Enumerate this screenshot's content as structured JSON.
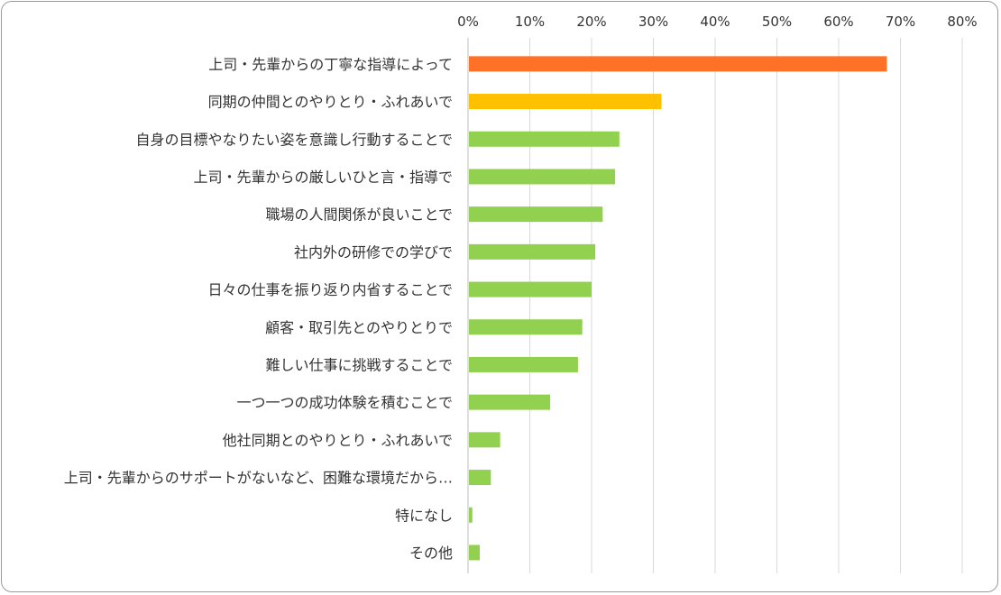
{
  "chart_data": {
    "type": "bar",
    "orientation": "horizontal",
    "x_ticks": [
      "0%",
      "10%",
      "20%",
      "30%",
      "40%",
      "50%",
      "60%",
      "70%",
      "80%"
    ],
    "xlim": [
      0,
      80
    ],
    "grid": true,
    "categories": [
      "上司・先輩からの丁寧な指導によって",
      "同期の仲間とのやりとり・ふれあいで",
      "自身の目標やなりたい姿を意識し行動することで",
      "上司・先輩からの厳しいひと言・指導で",
      "職場の人間関係が良いことで",
      "社内外の研修での学びで",
      "日々の仕事を振り返り内省することで",
      "顧客・取引先とのやりとりで",
      "難しい仕事に挑戦することで",
      "一つ一つの成功体験を積むことで",
      "他社同期とのやりとり・ふれあいで",
      "上司・先輩からのサポートがないなど、困難な環境だから…",
      "特になし",
      "その他"
    ],
    "values": [
      67.8,
      31.3,
      24.5,
      23.8,
      21.8,
      20.6,
      20.0,
      18.5,
      17.8,
      13.3,
      5.2,
      3.7,
      0.7,
      1.9
    ],
    "colors": [
      "#ff7127",
      "#ffc000",
      "#92d050",
      "#92d050",
      "#92d050",
      "#92d050",
      "#92d050",
      "#92d050",
      "#92d050",
      "#92d050",
      "#92d050",
      "#92d050",
      "#92d050",
      "#92d050"
    ]
  }
}
